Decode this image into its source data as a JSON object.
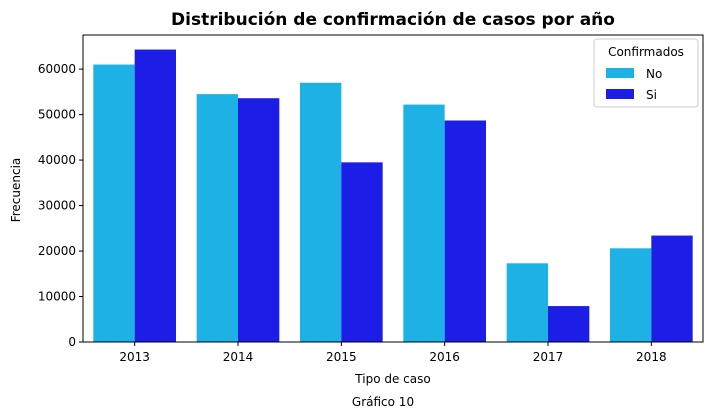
{
  "chart_data": {
    "type": "bar",
    "title": "Distribución de confirmación de casos por año",
    "xlabel": "Tipo de caso",
    "ylabel": "Frecuencia",
    "caption": "Gráfico 10",
    "categories": [
      "2013",
      "2014",
      "2015",
      "2016",
      "2017",
      "2018"
    ],
    "ylim": [
      0,
      67500
    ],
    "yticks": [
      0,
      10000,
      20000,
      30000,
      40000,
      50000,
      60000
    ],
    "legend": {
      "title": "Confirmados",
      "placement": "top-right"
    },
    "series": [
      {
        "name": "No",
        "color": "#1eb1e6",
        "values": [
          61000,
          54500,
          57000,
          52200,
          17300,
          20600
        ]
      },
      {
        "name": "Si",
        "color": "#1c1de6",
        "values": [
          64300,
          53600,
          39500,
          48700,
          7900,
          23400
        ]
      }
    ],
    "grid": false
  }
}
